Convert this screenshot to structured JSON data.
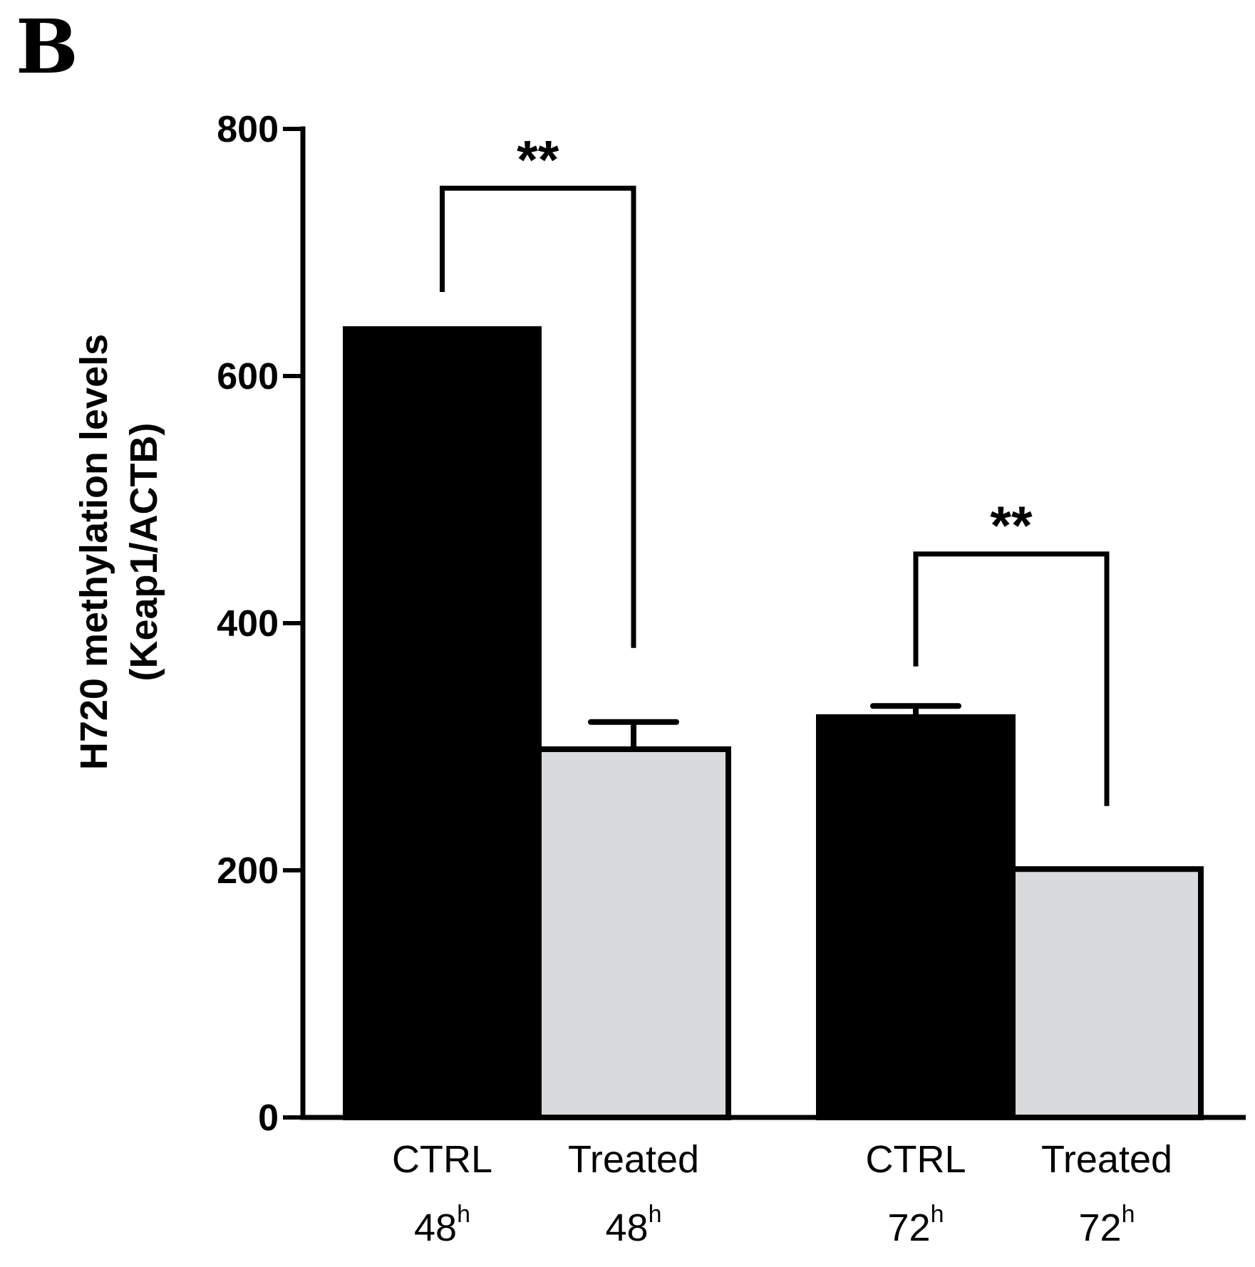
{
  "panel_label": "B",
  "chart_data": {
    "type": "bar",
    "title": "",
    "xlabel": "",
    "ylabel_lines": [
      "H720 methylation levels",
      "(Keap1/ACTB)"
    ],
    "ylim": [
      0,
      800
    ],
    "yticks": [
      0,
      200,
      400,
      600,
      800
    ],
    "bars": [
      {
        "name": "CTRL",
        "time": "48",
        "time_unit": "h",
        "value": 638,
        "error": 0,
        "color": "#000000"
      },
      {
        "name": "Treated",
        "time": "48",
        "time_unit": "h",
        "value": 298,
        "error": 22,
        "color": "#d9dadb"
      },
      {
        "name": "CTRL",
        "time": "72",
        "time_unit": "h",
        "value": 324,
        "error": 9,
        "color": "#000000"
      },
      {
        "name": "Treated",
        "time": "72",
        "time_unit": "h",
        "value": 201,
        "error": 0,
        "color": "#d9dadb"
      }
    ],
    "significance": [
      {
        "from": 0,
        "to": 1,
        "label": "**",
        "bracket_y": 752,
        "left_drop": 668,
        "right_drop": 380
      },
      {
        "from": 2,
        "to": 3,
        "label": "**",
        "bracket_y": 456,
        "left_drop": 365,
        "right_drop": 252
      }
    ],
    "grid": false,
    "legend": "none"
  }
}
